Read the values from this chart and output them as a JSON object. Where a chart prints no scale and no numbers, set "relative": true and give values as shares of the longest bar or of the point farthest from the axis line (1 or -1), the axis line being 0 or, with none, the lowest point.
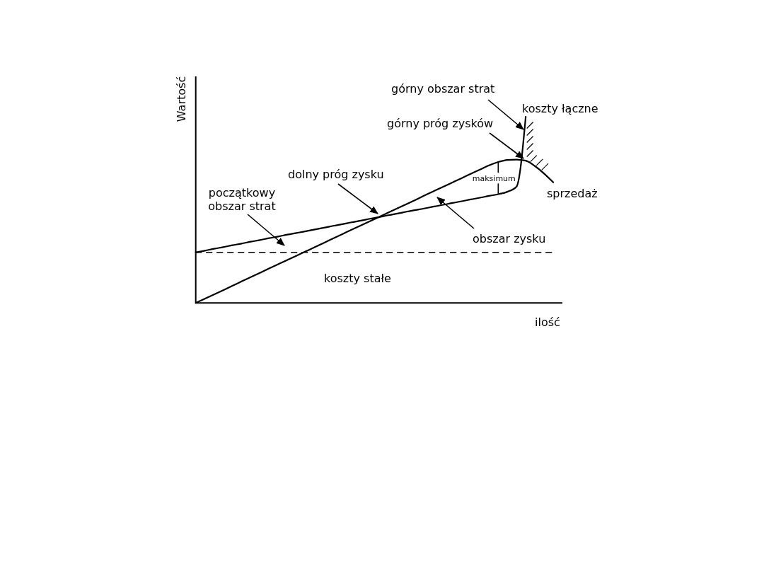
{
  "chart_data": {
    "type": "line",
    "relative": true,
    "legend": false,
    "xlabel": "ilość",
    "ylabel": "Wartość",
    "categories": [
      null,
      null,
      null,
      null,
      null,
      null,
      null,
      null,
      null,
      null,
      null,
      null,
      null,
      null,
      null,
      null,
      null,
      null,
      null,
      null,
      null,
      null,
      null,
      null,
      null,
      null,
      null,
      null,
      null,
      null,
      null,
      null,
      null,
      null,
      null,
      null,
      null,
      null,
      null,
      null,
      null
    ],
    "series": [
      {
        "name": "sprzedaż",
        "color": "#000000",
        "values": [
          0,
          0.023,
          0.046,
          0.069,
          0.092,
          0.116,
          0.139,
          0.162,
          0.185,
          0.208,
          0.231,
          0.254,
          0.277,
          0.3,
          0.323,
          0.347,
          0.37,
          0.393,
          0.416,
          0.439,
          0.462,
          0.485,
          0.508,
          0.531,
          0.554,
          0.578,
          0.601,
          0.624,
          0.647,
          0.67,
          0.693,
          0.716,
          0.739,
          0.757,
          0.768,
          0.77,
          0.764,
          0.735,
          0.695,
          0.648,
          null
        ]
      },
      {
        "name": "koszty łączne",
        "color": "#000000",
        "values": [
          0.272,
          0.281,
          0.291,
          0.3,
          0.31,
          0.319,
          0.329,
          0.338,
          0.348,
          0.357,
          0.367,
          0.376,
          0.385,
          0.395,
          0.404,
          0.414,
          0.423,
          0.433,
          0.442,
          0.452,
          0.461,
          0.471,
          0.48,
          0.49,
          0.499,
          0.508,
          0.518,
          0.527,
          0.537,
          0.546,
          0.556,
          0.565,
          0.575,
          0.584,
          0.597,
          0.625,
          1,
          null,
          null,
          null,
          null
        ]
      },
      {
        "name": "koszty stałe",
        "color": "#000000",
        "line_style": "dashed",
        "values": [
          0.272,
          0.272,
          0.272,
          0.272,
          0.272,
          0.272,
          0.272,
          0.272,
          0.272,
          0.272,
          0.272,
          0.272,
          0.272,
          0.272,
          0.272,
          0.272,
          0.272,
          0.272,
          0.272,
          0.272,
          0.272,
          0.272,
          0.272,
          0.272,
          0.272,
          0.272,
          0.272,
          0.272,
          0.272,
          0.272,
          0.272,
          0.272,
          0.272,
          0.272,
          0.272,
          0.272,
          0.272,
          0.272,
          0.272,
          0.272,
          null
        ]
      }
    ],
    "annotations": [
      "górny obszar strat",
      "górny próg zysków",
      "dolny próg zysku",
      "początkowy obszar strat",
      "obszar zysku",
      "maksimum"
    ]
  }
}
